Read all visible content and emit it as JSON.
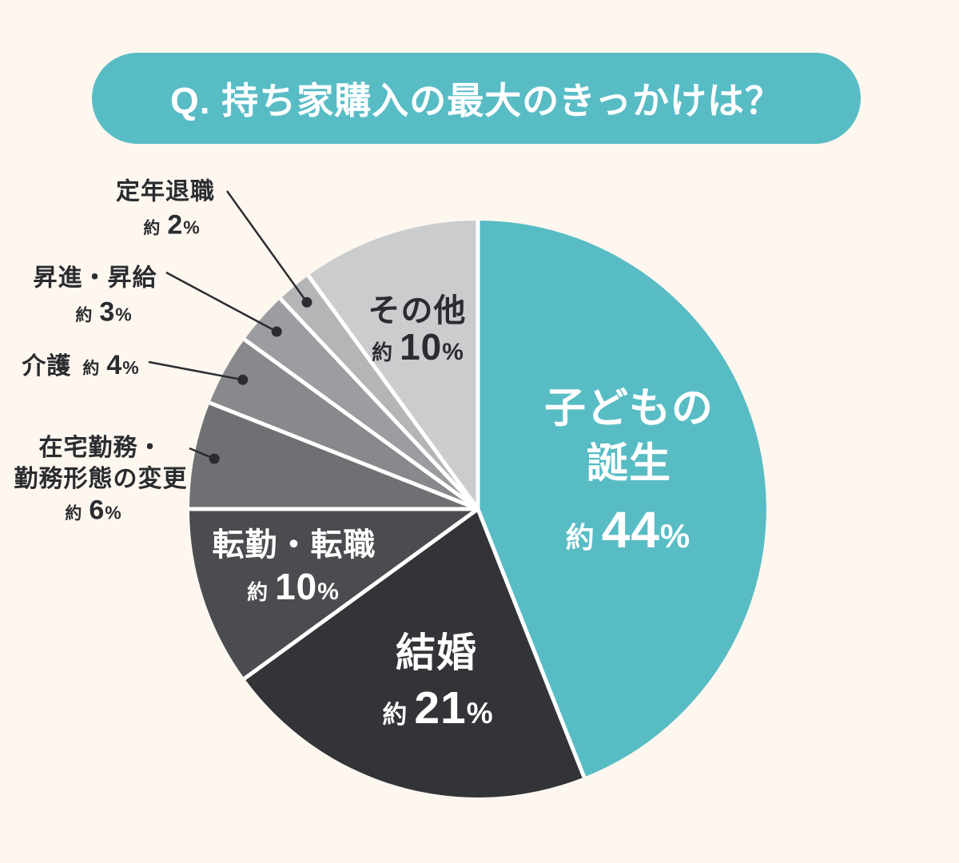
{
  "header": {
    "question": "Q. 持ち家購入の最大のきっかけは？"
  },
  "colors": {
    "background": "#fdf7ef",
    "accent": "#58bcc5",
    "text_dark": "#2b2c30",
    "label_light": "#ffffff",
    "separator": "#ffffff",
    "leader_line": "#2b2c30"
  },
  "chart_data": {
    "type": "pie",
    "title": "Q. 持ち家購入の最大のきっかけは？",
    "unit": "%",
    "direction": "clockwise",
    "start_angle_deg": 0,
    "legend_position": "none",
    "segments": [
      {
        "label": "子どもの誕生",
        "label_lines": [
          "子どもの",
          "誕生"
        ],
        "approx": "約",
        "value": 44,
        "pct": "%",
        "color": "#58bcc5",
        "label_placement": "inside",
        "text_color": "#ffffff"
      },
      {
        "label": "結婚",
        "approx": "約",
        "value": 21,
        "pct": "%",
        "color": "#333438",
        "label_placement": "inside",
        "text_color": "#ffffff"
      },
      {
        "label": "転勤・転職",
        "approx": "約",
        "value": 10,
        "pct": "%",
        "color": "#4b4c50",
        "label_placement": "inside",
        "text_color": "#ffffff"
      },
      {
        "label": "在宅勤務・勤務形態の変更",
        "label_lines": [
          "在宅勤務・",
          "勤務形態の変更"
        ],
        "approx": "約",
        "value": 6,
        "pct": "%",
        "color": "#6f7073",
        "label_placement": "outside",
        "text_color": "#2b2c30"
      },
      {
        "label": "介護",
        "approx": "約",
        "value": 4,
        "pct": "%",
        "color": "#88898c",
        "label_placement": "outside",
        "text_color": "#2b2c30"
      },
      {
        "label": "昇進・昇給",
        "approx": "約",
        "value": 3,
        "pct": "%",
        "color": "#9c9da0",
        "label_placement": "outside",
        "text_color": "#2b2c30"
      },
      {
        "label": "定年退職",
        "approx": "約",
        "value": 2,
        "pct": "%",
        "color": "#b4b5b7",
        "label_placement": "outside",
        "text_color": "#2b2c30"
      },
      {
        "label": "その他",
        "approx": "約",
        "value": 10,
        "pct": "%",
        "color": "#cbccce",
        "label_placement": "inside",
        "text_color": "#2b2c30"
      }
    ]
  }
}
